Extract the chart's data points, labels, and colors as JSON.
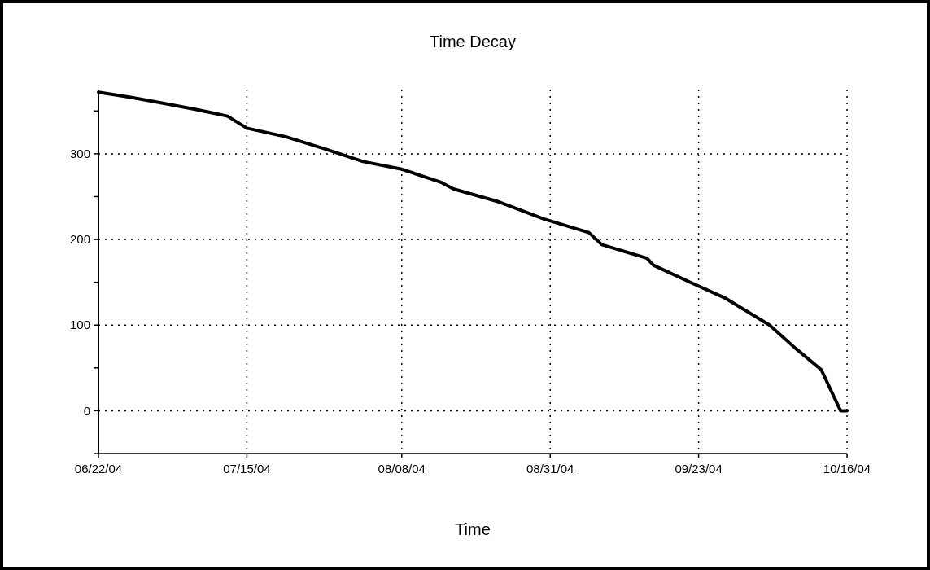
{
  "chart_data": {
    "type": "line",
    "title": "Time Decay",
    "xlabel": "Time",
    "x": [
      "2004-06-22",
      "2004-06-27",
      "2004-07-02",
      "2004-07-07",
      "2004-07-12",
      "2004-07-15",
      "2004-07-21",
      "2004-07-27",
      "2004-08-02",
      "2004-08-08",
      "2004-08-14",
      "2004-08-16",
      "2004-08-23",
      "2004-08-30",
      "2004-09-06",
      "2004-09-08",
      "2004-09-15",
      "2004-09-16",
      "2004-09-22",
      "2004-09-27",
      "2004-10-04",
      "2004-10-08",
      "2004-10-12",
      "2004-10-13",
      "2004-10-15",
      "2004-10-16"
    ],
    "series": [
      {
        "color": "#000000",
        "values": [
          372,
          366,
          359,
          352,
          344,
          330,
          320,
          306,
          291,
          282,
          267,
          259,
          244,
          224,
          208,
          194,
          178,
          170,
          149,
          132,
          100,
          73,
          48,
          32,
          0,
          0
        ]
      }
    ],
    "xlim": [
      "2004-06-22",
      "2004-10-16"
    ],
    "xticks": [
      {
        "value": "2004-06-22",
        "label": "06/22/04"
      },
      {
        "value": "2004-07-15",
        "label": "07/15/04"
      },
      {
        "value": "2004-08-08",
        "label": "08/08/04"
      },
      {
        "value": "2004-08-31",
        "label": "08/31/04"
      },
      {
        "value": "2004-09-23",
        "label": "09/23/04"
      },
      {
        "value": "2004-10-16",
        "label": "10/16/04"
      }
    ],
    "ylim": [
      -50,
      375
    ],
    "yticks": [
      {
        "value": -50,
        "label": null
      },
      0,
      {
        "value": 50,
        "label": null
      },
      100,
      {
        "value": 150,
        "label": null
      },
      200,
      {
        "value": 250,
        "label": null
      },
      300,
      {
        "value": 350,
        "label": null
      }
    ],
    "grid": true,
    "line_style": "solid",
    "marker": "none"
  }
}
